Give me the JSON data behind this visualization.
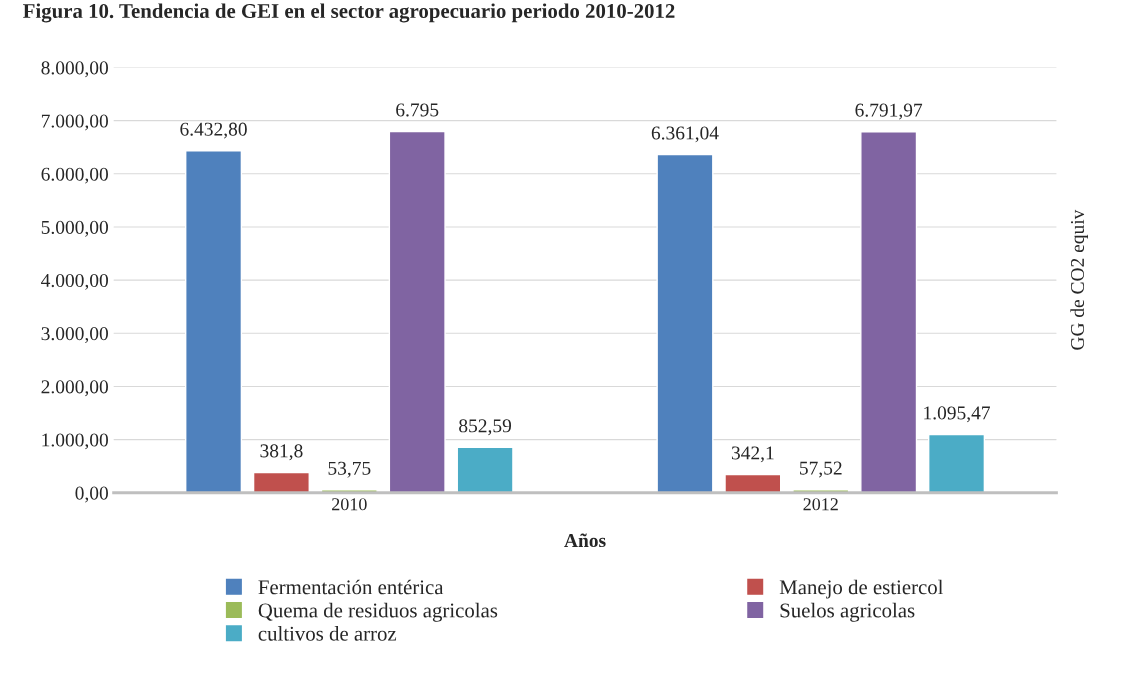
{
  "chart_data": {
    "type": "bar",
    "title": "Figura 10. Tendencia de GEI en el sector agropecuario periodo 2010-2012",
    "xlabel": "Años",
    "ylabel": "GG de CO2 equiv",
    "categories": [
      "2010",
      "2012"
    ],
    "series": [
      {
        "name": "Fermentación entérica",
        "color": "#4f81bd",
        "values": [
          6432.8,
          6361.04
        ],
        "value_labels": [
          "6.432,80",
          "6.361,04"
        ]
      },
      {
        "name": "Manejo de estiercol",
        "color": "#c0504d",
        "values": [
          381.8,
          342.1
        ],
        "value_labels": [
          "381,8",
          "342,1"
        ]
      },
      {
        "name": "Quema de residuos agricolas",
        "color": "#9bbb59",
        "values": [
          53.75,
          57.52
        ],
        "value_labels": [
          "53,75",
          "57,52"
        ]
      },
      {
        "name": "Suelos agricolas",
        "color": "#8064a2",
        "values": [
          6795,
          6791.97
        ],
        "value_labels": [
          "6.795",
          "6.791,97"
        ]
      },
      {
        "name": "cultivos de arroz",
        "color": "#4bacc6",
        "values": [
          852.59,
          1095.47
        ],
        "value_labels": [
          "852,59",
          "1.095,47"
        ]
      }
    ],
    "ylim": [
      0,
      8000
    ],
    "yticks": [
      {
        "value": 0,
        "label": "0,00"
      },
      {
        "value": 1000,
        "label": "1.000,00"
      },
      {
        "value": 2000,
        "label": "2.000,00"
      },
      {
        "value": 3000,
        "label": "3.000,00"
      },
      {
        "value": 4000,
        "label": "4.000,00"
      },
      {
        "value": 5000,
        "label": "5.000,00"
      },
      {
        "value": 6000,
        "label": "6.000,00"
      },
      {
        "value": 7000,
        "label": "7.000,00"
      },
      {
        "value": 8000,
        "label": "8.000,00"
      }
    ],
    "grid": "y",
    "legend": "bottom"
  }
}
